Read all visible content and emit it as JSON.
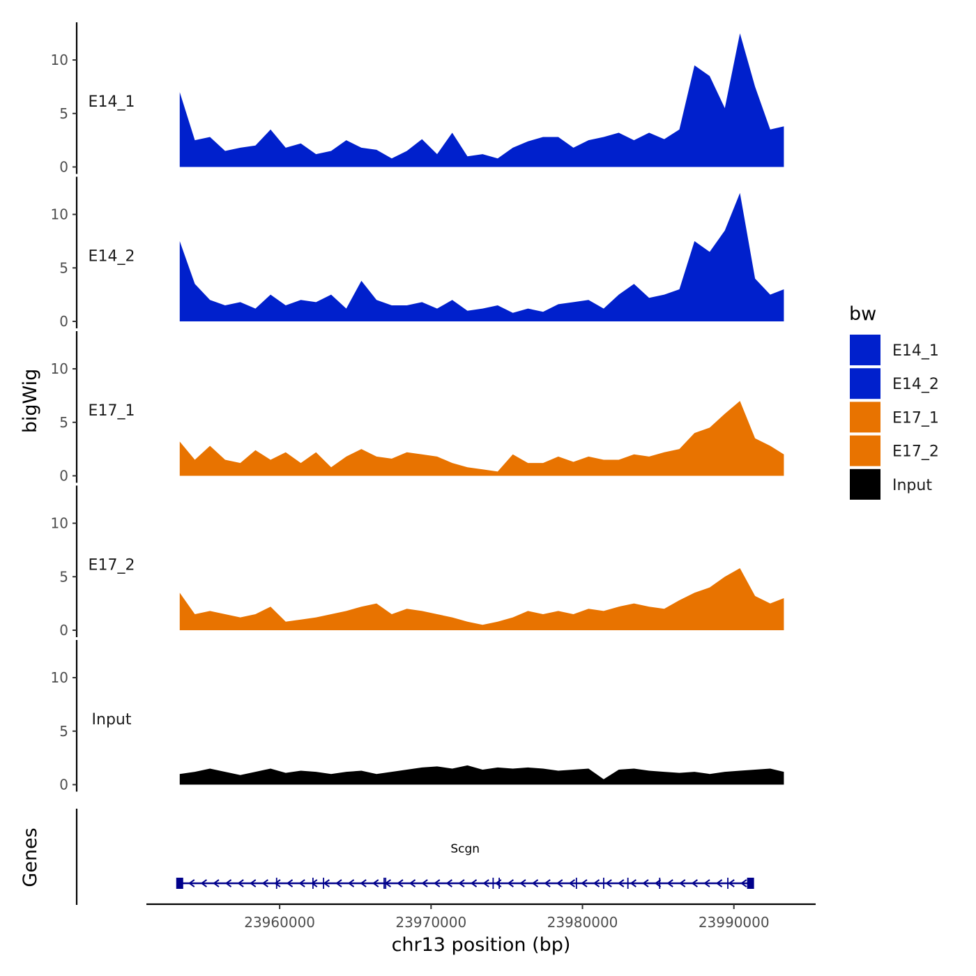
{
  "chart_data": {
    "type": "area",
    "title": "",
    "xlabel": "chr13 position (bp)",
    "ylabel": "bigWig",
    "genes_label": "Genes",
    "xlim": [
      23951200,
      23995400
    ],
    "ylim": [
      0,
      13
    ],
    "x_ticks": [
      23960000,
      23970000,
      23980000,
      23990000
    ],
    "x_tick_labels": [
      "23960000",
      "23970000",
      "23980000",
      "23990000"
    ],
    "y_ticks": [
      0,
      5,
      10
    ],
    "y_tick_labels": [
      "0",
      "5",
      "10"
    ],
    "track_x": [
      23953400,
      23954400,
      23955400,
      23956400,
      23957400,
      23958400,
      23959400,
      23960400,
      23961400,
      23962400,
      23963400,
      23964400,
      23965400,
      23966400,
      23967400,
      23968400,
      23969400,
      23970400,
      23971400,
      23972400,
      23973400,
      23974400,
      23975400,
      23976400,
      23977400,
      23978400,
      23979400,
      23980400,
      23981400,
      23982400,
      23983400,
      23984400,
      23985400,
      23986400,
      23987400,
      23988400,
      23989400,
      23990400,
      23991400,
      23992400,
      23993300
    ],
    "series": [
      {
        "name": "E14_1",
        "color": "#0020CC",
        "values": [
          7.0,
          2.5,
          2.8,
          1.5,
          1.8,
          2.0,
          3.5,
          1.8,
          2.2,
          1.2,
          1.5,
          2.5,
          1.8,
          1.6,
          0.8,
          1.5,
          2.6,
          1.2,
          3.2,
          1.0,
          1.2,
          0.8,
          1.8,
          2.4,
          2.8,
          2.8,
          1.8,
          2.5,
          2.8,
          3.2,
          2.5,
          3.2,
          2.6,
          3.5,
          9.5,
          8.5,
          5.5,
          12.5,
          7.5,
          3.5,
          3.8
        ]
      },
      {
        "name": "E14_2",
        "color": "#0020CC",
        "values": [
          7.5,
          3.5,
          2.0,
          1.5,
          1.8,
          1.2,
          2.5,
          1.5,
          2.0,
          1.8,
          2.5,
          1.2,
          3.8,
          2.0,
          1.5,
          1.5,
          1.8,
          1.2,
          2.0,
          1.0,
          1.2,
          1.5,
          0.8,
          1.2,
          0.9,
          1.6,
          1.8,
          2.0,
          1.2,
          2.5,
          3.5,
          2.2,
          2.5,
          3.0,
          7.5,
          6.5,
          8.5,
          12.0,
          4.0,
          2.5,
          3.0
        ]
      },
      {
        "name": "E17_1",
        "color": "#E87300",
        "values": [
          3.2,
          1.5,
          2.8,
          1.5,
          1.2,
          2.4,
          1.5,
          2.2,
          1.2,
          2.2,
          0.8,
          1.8,
          2.5,
          1.8,
          1.6,
          2.2,
          2.0,
          1.8,
          1.2,
          0.8,
          0.6,
          0.4,
          2.0,
          1.2,
          1.2,
          1.8,
          1.3,
          1.8,
          1.5,
          1.5,
          2.0,
          1.8,
          2.2,
          2.5,
          4.0,
          4.5,
          5.8,
          7.0,
          3.5,
          2.8,
          2.0
        ]
      },
      {
        "name": "E17_2",
        "color": "#E87300",
        "values": [
          3.5,
          1.5,
          1.8,
          1.5,
          1.2,
          1.5,
          2.2,
          0.8,
          1.0,
          1.2,
          1.5,
          1.8,
          2.2,
          2.5,
          1.5,
          2.0,
          1.8,
          1.5,
          1.2,
          0.8,
          0.5,
          0.8,
          1.2,
          1.8,
          1.5,
          1.8,
          1.5,
          2.0,
          1.8,
          2.2,
          2.5,
          2.2,
          2.0,
          2.8,
          3.5,
          4.0,
          5.0,
          5.8,
          3.2,
          2.5,
          3.0
        ]
      },
      {
        "name": "Input",
        "color": "#000000",
        "values": [
          1.0,
          1.2,
          1.5,
          1.2,
          0.9,
          1.2,
          1.5,
          1.1,
          1.3,
          1.2,
          1.0,
          1.2,
          1.3,
          1.0,
          1.2,
          1.4,
          1.6,
          1.7,
          1.5,
          1.8,
          1.4,
          1.6,
          1.5,
          1.6,
          1.5,
          1.3,
          1.4,
          1.5,
          0.5,
          1.4,
          1.5,
          1.3,
          1.2,
          1.1,
          1.2,
          1.0,
          1.2,
          1.3,
          1.4,
          1.5,
          1.2
        ]
      }
    ],
    "legend": {
      "title": "bw",
      "position": "right",
      "entries": [
        {
          "label": "E14_1",
          "color": "#0020CC"
        },
        {
          "label": "E14_2",
          "color": "#0020CC"
        },
        {
          "label": "E17_1",
          "color": "#E87300"
        },
        {
          "label": "E17_2",
          "color": "#E87300"
        },
        {
          "label": "Input",
          "color": "#000000"
        }
      ]
    },
    "gene": {
      "name": "Scgn",
      "start": 23953400,
      "end": 23991100,
      "strand": "-",
      "color": "#00008B",
      "exons": [
        23953400,
        23959800,
        23962200,
        23962900,
        23966900,
        23967000,
        23974100,
        23974500,
        23979600,
        23981400,
        23983000,
        23985100,
        23989600,
        23991100
      ]
    }
  }
}
